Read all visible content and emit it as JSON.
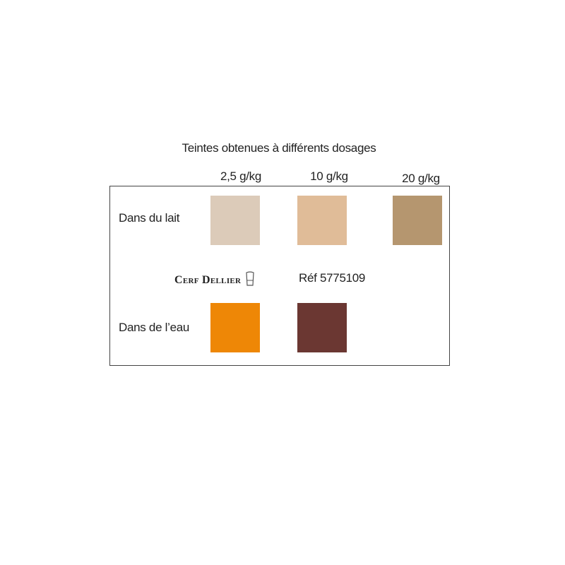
{
  "title": "Teintes obtenues à différents dosages",
  "columns": [
    "2,5 g/kg",
    "10 g/kg",
    "20 g/kg"
  ],
  "rows": [
    {
      "label": "Dans du lait",
      "swatches": [
        "#dccbb9",
        "#e0bc98",
        "#b5966f"
      ]
    },
    {
      "label": "Dans de l’eau",
      "swatches": [
        "#ee8706",
        "#6b3732"
      ]
    }
  ],
  "logo": {
    "text": "Cerf Dellier",
    "icon": "chef-hat-icon"
  },
  "reference": "Réf 5775109"
}
